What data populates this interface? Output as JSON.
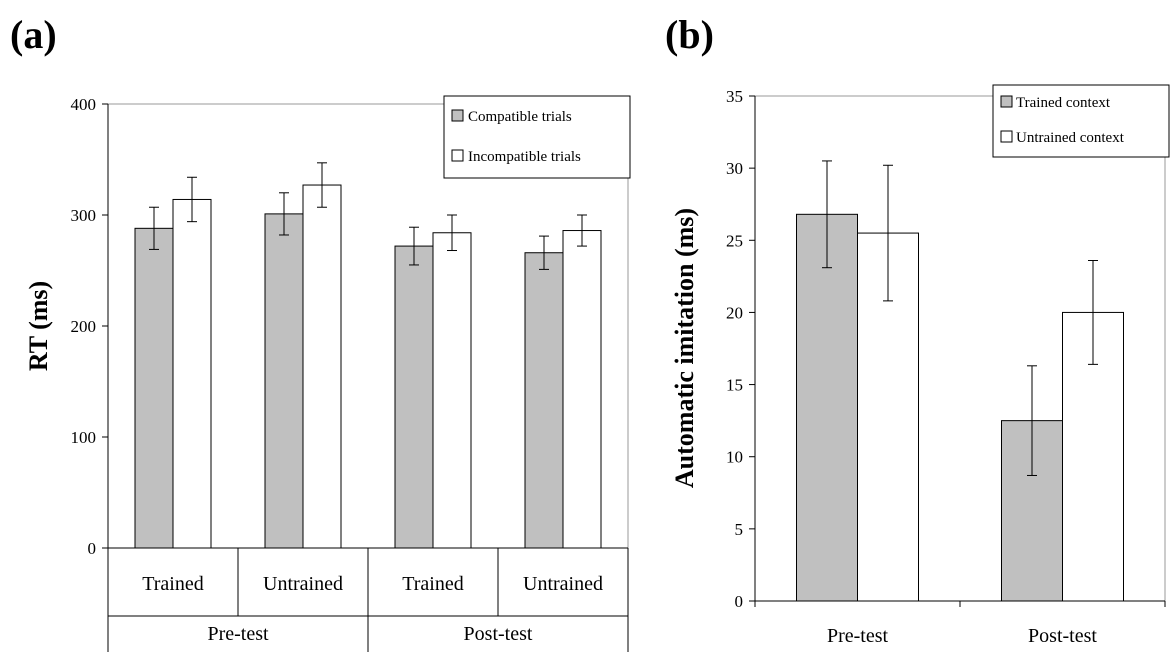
{
  "panels": [
    {
      "label": "(a)",
      "legend": [
        {
          "name": "Compatible trials",
          "color": "#c0c0c0"
        },
        {
          "name": "Incompatible trials",
          "color": "#ffffff"
        }
      ]
    },
    {
      "label": "(b)",
      "legend": [
        {
          "name": "Trained context",
          "color": "#c0c0c0"
        },
        {
          "name": "Untrained context",
          "color": "#ffffff"
        }
      ]
    }
  ],
  "chart_data": [
    {
      "type": "bar",
      "title": "",
      "ylabel": "RT (ms)",
      "xlabel": "",
      "ylim": [
        0,
        400
      ],
      "yticks": [
        0,
        100,
        200,
        300,
        400
      ],
      "categories": [
        "Trained",
        "Untrained",
        "Trained",
        "Untrained"
      ],
      "groups": [
        "Pre-test",
        "Post-test"
      ],
      "series": [
        {
          "name": "Compatible trials",
          "color": "#c0c0c0",
          "values": [
            288,
            301,
            272,
            266
          ],
          "errors": [
            19,
            19,
            17,
            15
          ]
        },
        {
          "name": "Incompatible trials",
          "color": "#ffffff",
          "values": [
            314,
            327,
            284,
            286
          ],
          "errors": [
            20,
            20,
            16,
            14
          ]
        }
      ],
      "legend_position": "top-right",
      "grid": false
    },
    {
      "type": "bar",
      "title": "",
      "ylabel": "Automatic imitation (ms)",
      "xlabel": "",
      "ylim": [
        0,
        35
      ],
      "yticks": [
        0,
        5,
        10,
        15,
        20,
        25,
        30,
        35
      ],
      "categories": [
        "Pre-test",
        "Post-test"
      ],
      "series": [
        {
          "name": "Trained context",
          "color": "#c0c0c0",
          "values": [
            26.8,
            12.5
          ],
          "errors": [
            3.7,
            3.8
          ]
        },
        {
          "name": "Untrained context",
          "color": "#ffffff",
          "values": [
            25.5,
            20.0
          ],
          "errors": [
            4.7,
            3.6
          ]
        }
      ],
      "legend_position": "top-right",
      "grid": false
    }
  ]
}
